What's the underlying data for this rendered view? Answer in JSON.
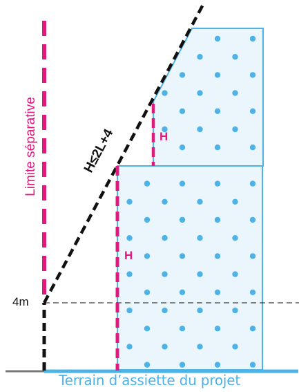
{
  "labels": {
    "boundary": "Limite séparative",
    "height_rule": "H≤2L+4",
    "height_marker_upper": "H",
    "height_marker_lower": "H",
    "threshold": "4m",
    "ground": "Terrain d’assiette du projet"
  },
  "colors": {
    "magenta": "#e0197d",
    "blue": "#4db3e6",
    "building_fill": "#eaf6fc",
    "building_stroke": "#4db3e6",
    "dot": "#4db3e6",
    "black": "#111111",
    "ground_gray": "#7a7a7a"
  }
}
